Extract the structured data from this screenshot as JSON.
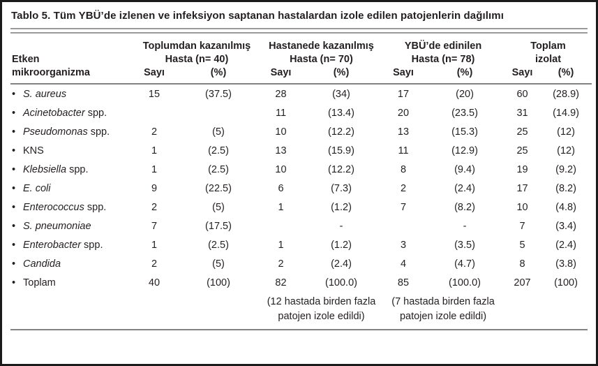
{
  "colors": {
    "text": "#231f20",
    "frame_border": "#1b1b1b",
    "rule_gray": "#9a9a9a",
    "header_rule": "#828282",
    "background": "#ffffff"
  },
  "table": {
    "title": "Tablo 5. Tüm YBÜ’de izlenen ve infeksiyon saptanan hastalardan izole edilen patojenlerin dağılımı",
    "bullet": "•",
    "header": {
      "etken_line1": "Etken",
      "etken_line2": "mikroorganizma",
      "count_label": "Sayı",
      "pct_label": "(%)",
      "groups": [
        {
          "name": "Toplumdan kazanılmış",
          "sub": "Hasta (n= 40)"
        },
        {
          "name": "Hastanede kazanılmış",
          "sub": "Hasta (n= 70)"
        },
        {
          "name": "YBÜ’de edinilen",
          "sub": "Hasta (n= 78)"
        },
        {
          "name": "Toplam",
          "sub": "izolat"
        }
      ]
    },
    "rows": [
      {
        "name_italic": "S. aureus",
        "name_rest": "",
        "cells": [
          "15",
          "(37.5)",
          "28",
          "(34)",
          "17",
          "(20)",
          "60",
          "(28.9)"
        ]
      },
      {
        "name_italic": "Acinetobacter",
        "name_rest": " spp.",
        "cells": [
          "",
          "",
          "11",
          "(13.4)",
          "20",
          "(23.5)",
          "31",
          "(14.9)"
        ]
      },
      {
        "name_italic": "Pseudomonas",
        "name_rest": " spp.",
        "cells": [
          "2",
          "(5)",
          "10",
          "(12.2)",
          "13",
          "(15.3)",
          "25",
          "(12)"
        ]
      },
      {
        "name_italic": "",
        "name_rest": "KNS",
        "cells": [
          "1",
          "(2.5)",
          "13",
          "(15.9)",
          "11",
          "(12.9)",
          "25",
          "(12)"
        ]
      },
      {
        "name_italic": "Klebsiella",
        "name_rest": " spp.",
        "cells": [
          "1",
          "(2.5)",
          "10",
          "(12.2)",
          "8",
          "(9.4)",
          "19",
          "(9.2)"
        ]
      },
      {
        "name_italic": "E. coli",
        "name_rest": "",
        "cells": [
          "9",
          "(22.5)",
          "6",
          "(7.3)",
          "2",
          "(2.4)",
          "17",
          "(8.2)"
        ]
      },
      {
        "name_italic": "Enterococcus",
        "name_rest": " spp.",
        "cells": [
          "2",
          "(5)",
          "1",
          "(1.2)",
          "7",
          "(8.2)",
          "10",
          "(4.8)"
        ]
      },
      {
        "name_italic": "S. pneumoniae",
        "name_rest": "",
        "cells": [
          "7",
          "(17.5)",
          "",
          "-",
          "",
          "-",
          "7",
          "(3.4)"
        ]
      },
      {
        "name_italic": "Enterobacter",
        "name_rest": " spp.",
        "cells": [
          "1",
          "(2.5)",
          "1",
          "(1.2)",
          "3",
          "(3.5)",
          "5",
          "(2.4)"
        ]
      },
      {
        "name_italic": "Candida",
        "name_rest": "",
        "cells": [
          "2",
          "(5)",
          "2",
          "(2.4)",
          "4",
          "(4.7)",
          "8",
          "(3.8)"
        ]
      },
      {
        "name_italic": "",
        "name_rest": "Toplam",
        "cells": [
          "40",
          "(100)",
          "82",
          "(100.0)",
          "85",
          "(100.0)",
          "207",
          "(100)"
        ]
      }
    ],
    "footnotes": [
      {
        "line1": "(12 hastada birden fazla",
        "line2": "patojen izole edildi)"
      },
      {
        "line1": "(7 hastada birden fazla",
        "line2": "patojen izole edildi)"
      }
    ]
  }
}
